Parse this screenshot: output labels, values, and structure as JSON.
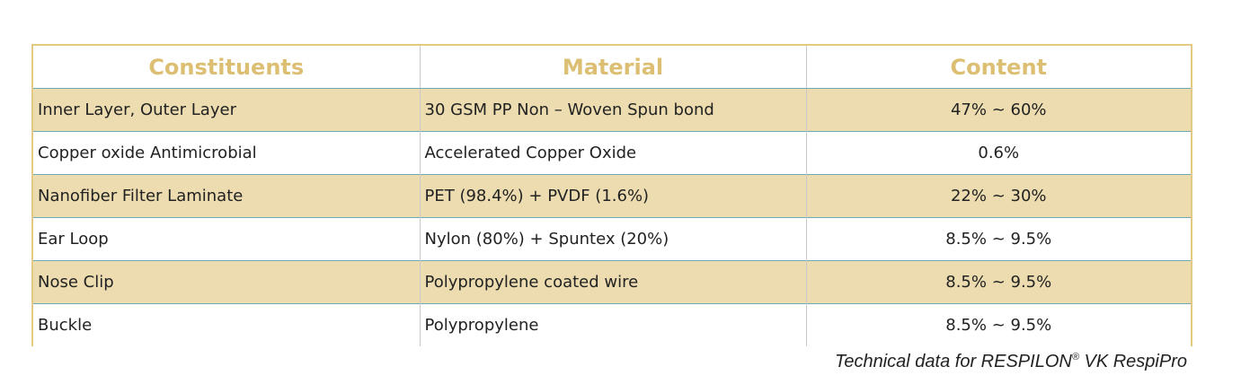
{
  "table": {
    "headers": [
      "Constituents",
      "Material",
      "Content"
    ],
    "rows": [
      {
        "constituent": "Inner Layer, Outer Layer",
        "material": "30 GSM PP Non – Woven Spun bond",
        "content": "47% ~ 60%"
      },
      {
        "constituent": "Copper oxide Antimicrobial",
        "material": "Accelerated Copper Oxide",
        "content": "0.6%"
      },
      {
        "constituent": "Nanofiber Filter Laminate",
        "material": "PET (98.4%) + PVDF (1.6%)",
        "content": "22% ~ 30%"
      },
      {
        "constituent": "Ear Loop",
        "material": "Nylon (80%) + Spuntex (20%)",
        "content": "8.5% ~ 9.5%"
      },
      {
        "constituent": "Nose Clip",
        "material": "Polypropylene coated wire",
        "content": "8.5% ~ 9.5%"
      },
      {
        "constituent": "Buckle",
        "material": "Polypropylene",
        "content": "8.5% ~ 9.5%"
      }
    ]
  },
  "caption": {
    "prefix": "Technical data for RESPILON",
    "registered_mark": "®",
    "suffix": " VK RespiPro"
  },
  "colors": {
    "header_text": "#dcbf72",
    "shaded_row": "#ecdcb0",
    "border": "#e2ca84",
    "row_divider": "#6fa9b4"
  }
}
